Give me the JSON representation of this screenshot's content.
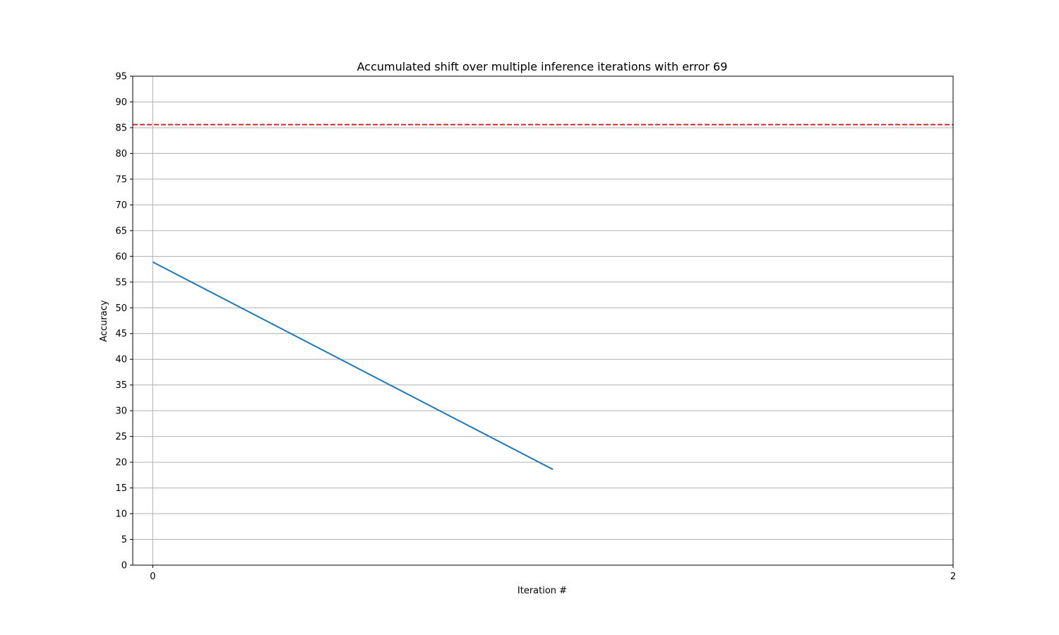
{
  "chart_data": {
    "type": "line",
    "title": "Accumulated shift over multiple inference iterations with error 69",
    "xlabel": "Iteration #",
    "ylabel": "Accuracy",
    "xlim": [
      -0.05,
      2
    ],
    "ylim": [
      0,
      95
    ],
    "x_ticks": [
      0,
      2
    ],
    "y_ticks": [
      0,
      5,
      10,
      15,
      20,
      25,
      30,
      35,
      40,
      45,
      50,
      55,
      60,
      65,
      70,
      75,
      80,
      85,
      90,
      95
    ],
    "grid": true,
    "legend": "none",
    "series": [
      {
        "x": [
          0,
          1
        ],
        "y": [
          58.9,
          18.6
        ],
        "color": "#1f77b4",
        "style": "solid"
      }
    ],
    "reference_lines": [
      {
        "orientation": "horizontal",
        "y": 85.6,
        "color": "#d62728",
        "style": "dashed"
      }
    ]
  }
}
